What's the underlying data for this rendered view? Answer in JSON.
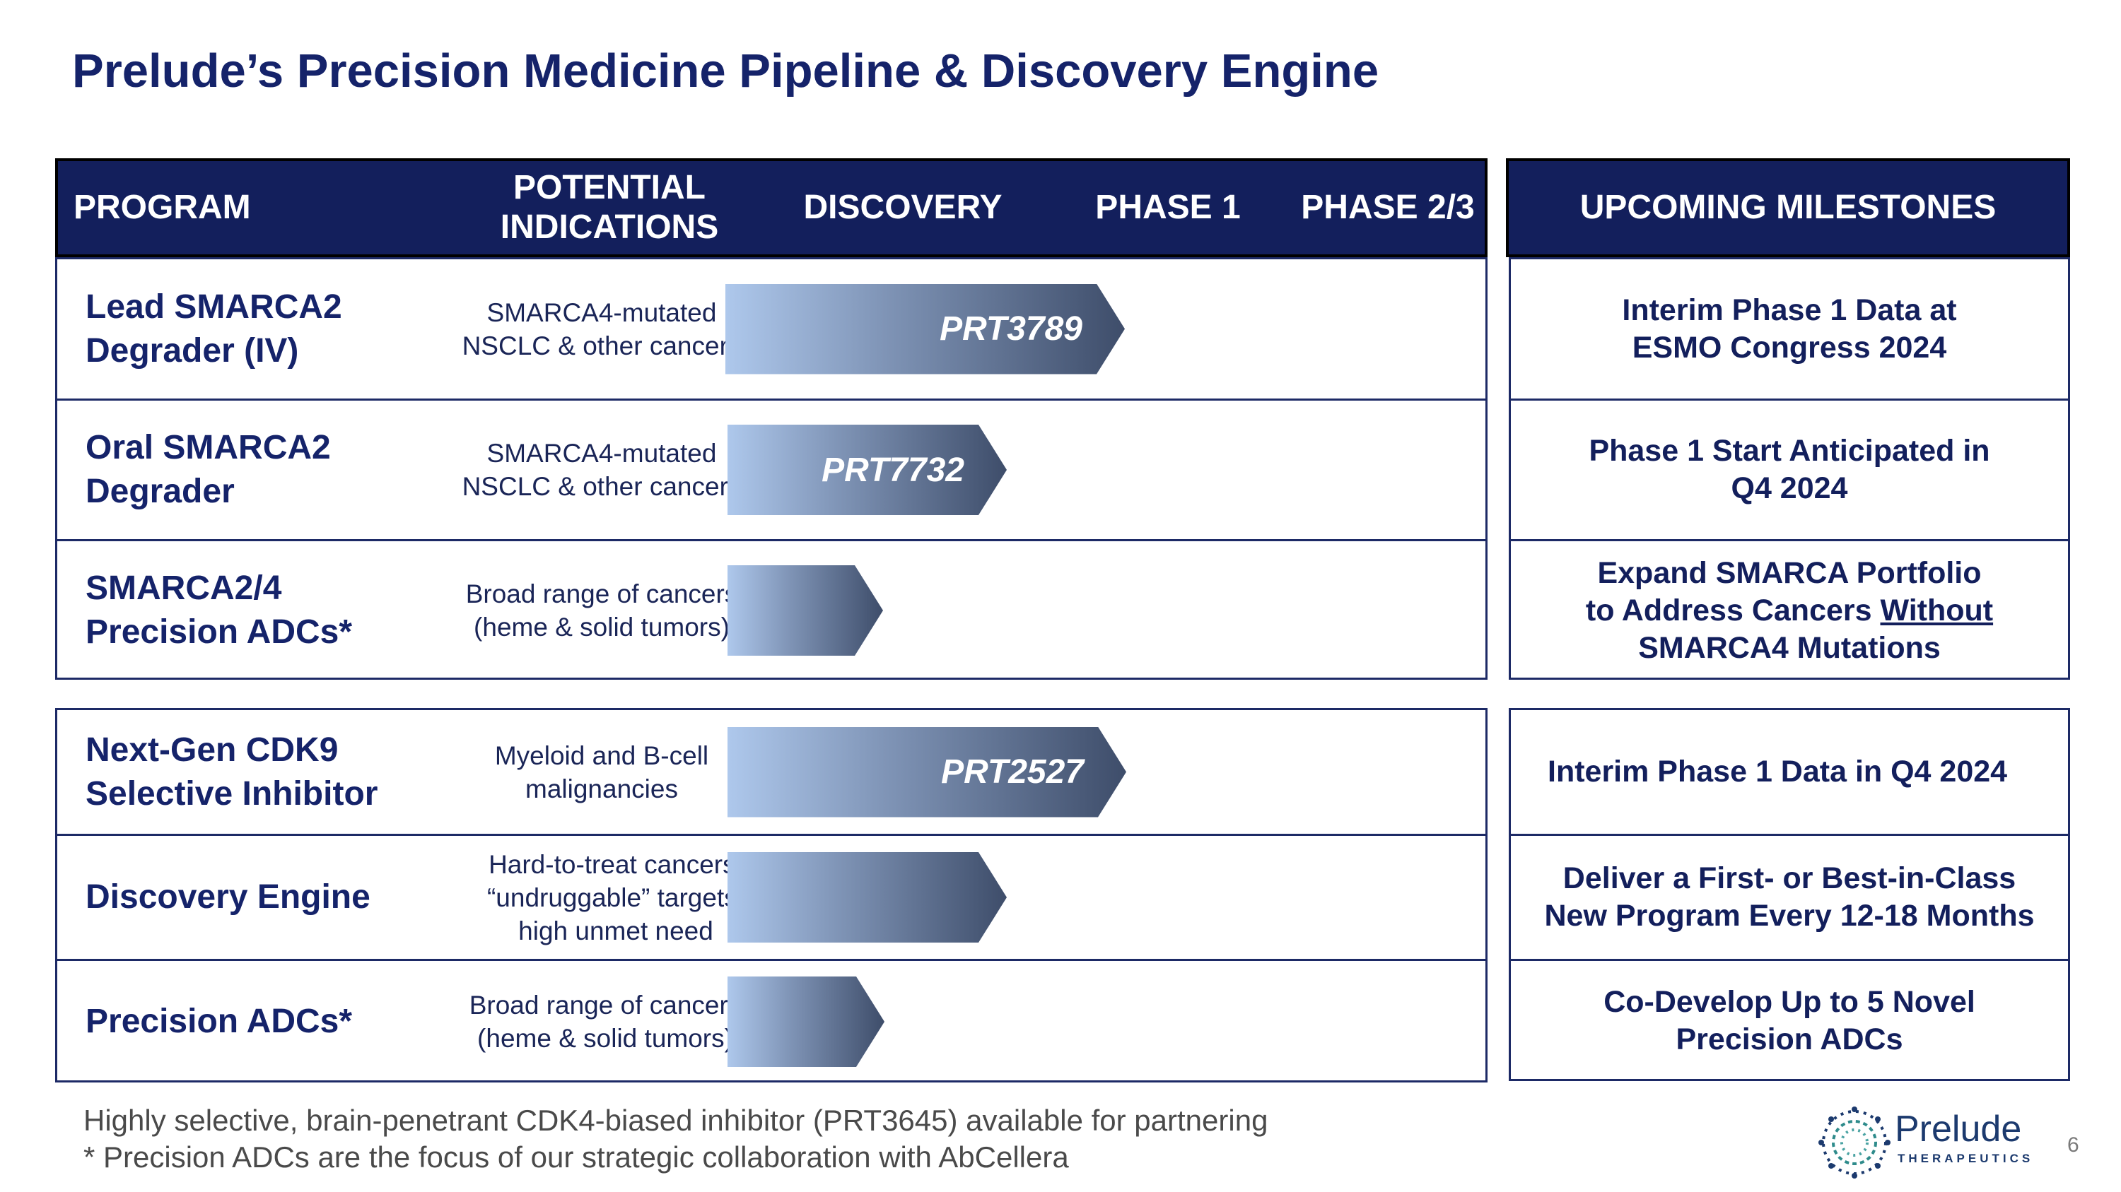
{
  "title": "Prelude’s Precision Medicine Pipeline & Discovery Engine",
  "header": {
    "program": "PROGRAM",
    "indications": "POTENTIAL\nINDICATIONS",
    "discovery": "DISCOVERY",
    "phase1": "PHASE 1",
    "phase23": "PHASE 2/3",
    "milestones": "UPCOMING MILESTONES"
  },
  "group1": [
    {
      "program": "Lead SMARCA2\nDegrader (IV)",
      "indications": "SMARCA4-mutated\nNSCLC & other cancers",
      "asset": "PRT3789",
      "stage": "Phase 1",
      "milestone": "Interim Phase 1 Data at\nESMO Congress 2024"
    },
    {
      "program": "Oral SMARCA2\nDegrader",
      "indications": "SMARCA4-mutated\nNSCLC & other cancers",
      "asset": "PRT7732",
      "stage": "Late Discovery",
      "milestone": "Phase 1 Start Anticipated in\nQ4 2024"
    },
    {
      "program": "SMARCA2/4\nPrecision ADCs*",
      "indications": "Broad range of cancers\n(heme & solid tumors)",
      "asset": "",
      "stage": "Discovery",
      "milestone_a": "Expand SMARCA Portfolio",
      "milestone_b": "to Address Cancers ",
      "milestone_u": "Without",
      "milestone_c": "SMARCA4 Mutations"
    }
  ],
  "group2": [
    {
      "program": "Next-Gen CDK9\nSelective Inhibitor",
      "indications": "Myeloid and B-cell\nmalignancies",
      "asset": "PRT2527",
      "stage": "Phase 1",
      "milestone": "Interim Phase 1 Data in Q4 2024"
    },
    {
      "program": "Discovery Engine",
      "indications": "Hard-to-treat cancers,\n“undruggable” targets,\nhigh unmet need",
      "asset": "",
      "stage": "Late Discovery",
      "milestone": "Deliver a First- or Best-in-Class\nNew Program Every 12-18 Months"
    },
    {
      "program": "Precision ADCs*",
      "indications": "Broad range of cancers\n(heme & solid tumors)",
      "asset": "",
      "stage": "Discovery",
      "milestone": "Co-Develop Up to 5 Novel\nPrecision ADCs"
    }
  ],
  "footnotes": [
    "Highly selective, brain-penetrant CDK4-biased inhibitor (PRT3645) available for partnering",
    "* Precision ADCs are the focus of our strategic collaboration with AbCellera"
  ],
  "logo": {
    "name": "Prelude",
    "sub": "THERAPEUTICS"
  },
  "page_number": "6",
  "colors": {
    "navy": "#131f5c",
    "arrow_light": "#aec8ec",
    "arrow_dark": "#3e4d6a"
  }
}
